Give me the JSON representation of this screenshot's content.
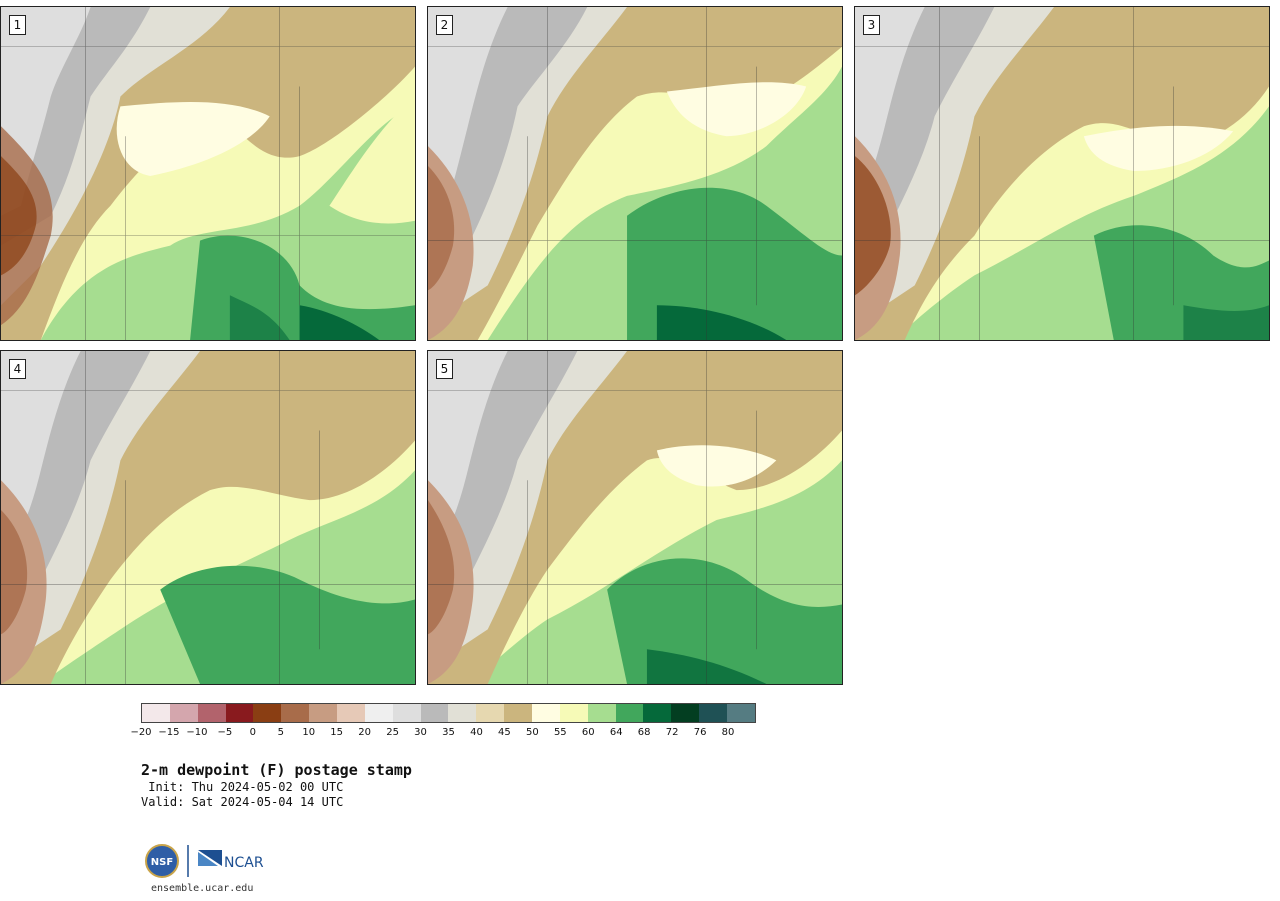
{
  "panels": [
    {
      "label": "1"
    },
    {
      "label": "2"
    },
    {
      "label": "3"
    },
    {
      "label": "4"
    },
    {
      "label": "5"
    }
  ],
  "colorbar": {
    "colors": [
      "#f3e8ea",
      "#d4a6ad",
      "#b2636c",
      "#891a1e",
      "#8a3e13",
      "#a86c4a",
      "#c79c82",
      "#e6c9b7",
      "#efefef",
      "#dedede",
      "#bababa",
      "#e1e0d6",
      "#e6d8b0",
      "#cbb57e",
      "#fffde2",
      "#f6fab7",
      "#a6dd90",
      "#41a75c",
      "#05693a",
      "#033e21",
      "#1f5155",
      "#557c82"
    ],
    "tick_labels": [
      "−20",
      "−15",
      "−10",
      "−5",
      "0",
      "5",
      "10",
      "15",
      "20",
      "25",
      "30",
      "35",
      "40",
      "45",
      "50",
      "55",
      "60",
      "64",
      "68",
      "72",
      "76",
      "80"
    ]
  },
  "title": "2-m dewpoint (F) postage stamp",
  "init": " Init: Thu 2024-05-02 00 UTC",
  "valid": "Valid: Sat 2024-05-04 14 UTC",
  "footer": {
    "logo_nsf": "NSF",
    "logo_ncar": "NCAR",
    "site": "ensemble.ucar.edu"
  }
}
